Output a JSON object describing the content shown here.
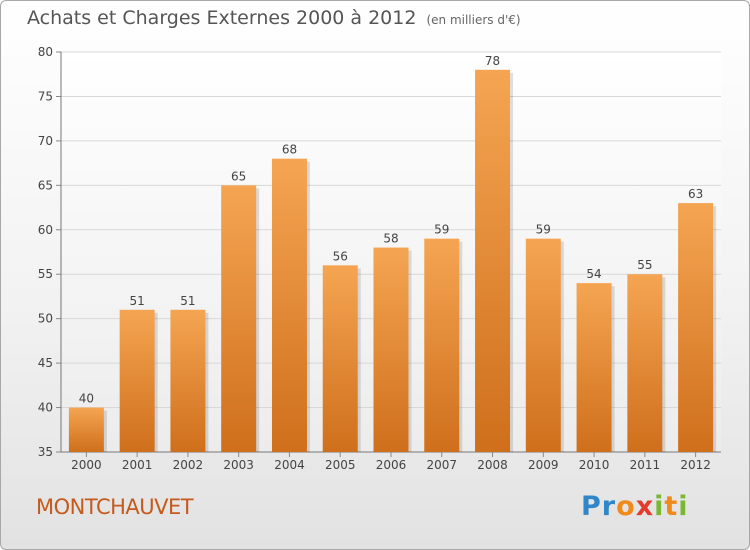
{
  "header": {
    "title": "Achats et Charges Externes 2000 à 2012",
    "unit": "(en milliers d'€)"
  },
  "footer": {
    "city": "MONTCHAUVET",
    "logo_letters": [
      "P",
      "r",
      "o",
      "x",
      "i",
      "t",
      "i"
    ],
    "logo_colors": [
      "#2f86c8",
      "#2f86c8",
      "#f08a1a",
      "#e33c2c",
      "#7ab834",
      "#f08a1a",
      "#7ab834"
    ]
  },
  "colors": {
    "bar_top": "#f5a552",
    "bar_bottom": "#cf6f1c",
    "axis_text": "#444444",
    "grid": "#d8d8d8"
  },
  "chart_data": {
    "type": "bar",
    "categories": [
      "2000",
      "2001",
      "2002",
      "2003",
      "2004",
      "2005",
      "2006",
      "2007",
      "2008",
      "2009",
      "2010",
      "2011",
      "2012"
    ],
    "values": [
      40,
      51,
      51,
      65,
      68,
      56,
      58,
      59,
      78,
      59,
      54,
      55,
      63
    ],
    "title": "Achats et Charges Externes 2000 à 2012",
    "ylim": [
      35,
      80
    ],
    "yticks": [
      35,
      40,
      45,
      50,
      55,
      60,
      65,
      70,
      75,
      80
    ],
    "grid": true
  }
}
